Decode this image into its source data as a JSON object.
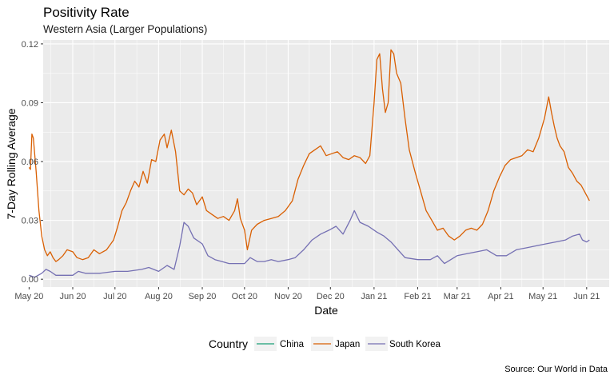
{
  "chart_data": {
    "type": "line",
    "title": "Positivity Rate",
    "subtitle": "Western Asia (Larger Populations)",
    "xlabel": "Date",
    "ylabel": "7-Day Rolling Average",
    "caption": "Source:  Our World in Data",
    "legend_title": "Country",
    "legend_position": "bottom",
    "grid": true,
    "ylim": [
      -0.004,
      0.122
    ],
    "xlim": [
      "2020-05-11",
      "2021-06-17"
    ],
    "y_ticks": [
      0.0,
      0.03,
      0.06,
      0.09,
      0.12
    ],
    "y_tick_labels": [
      "0.00",
      "0.03",
      "0.06",
      "0.09",
      "0.12"
    ],
    "x_ticks": [
      "2020-05-01",
      "2020-06-01",
      "2020-07-01",
      "2020-08-01",
      "2020-09-01",
      "2020-10-01",
      "2020-11-01",
      "2020-12-01",
      "2021-01-01",
      "2021-02-01",
      "2021-03-01",
      "2021-04-01",
      "2021-05-01",
      "2021-06-01"
    ],
    "x_tick_labels": [
      "May 20",
      "Jun 20",
      "Jul 20",
      "Aug 20",
      "Sep 20",
      "Oct 20",
      "Nov 20",
      "Dec 20",
      "Jan 21",
      "Feb 21",
      "Mar 21",
      "Apr 21",
      "May 21",
      "Jun 21"
    ],
    "series": [
      {
        "name": "China",
        "color": "#1b9e77",
        "x": [],
        "y": []
      },
      {
        "name": "Japan",
        "color": "#d95f02",
        "x": [
          "2020-05-01",
          "2020-05-02",
          "2020-05-03",
          "2020-05-04",
          "2020-05-06",
          "2020-05-08",
          "2020-05-10",
          "2020-05-12",
          "2020-05-14",
          "2020-05-16",
          "2020-05-18",
          "2020-05-20",
          "2020-05-22",
          "2020-05-25",
          "2020-05-28",
          "2020-06-01",
          "2020-06-04",
          "2020-06-08",
          "2020-06-12",
          "2020-06-16",
          "2020-06-20",
          "2020-06-25",
          "2020-06-30",
          "2020-07-03",
          "2020-07-06",
          "2020-07-09",
          "2020-07-12",
          "2020-07-15",
          "2020-07-18",
          "2020-07-21",
          "2020-07-24",
          "2020-07-27",
          "2020-07-30",
          "2020-08-02",
          "2020-08-05",
          "2020-08-07",
          "2020-08-10",
          "2020-08-13",
          "2020-08-16",
          "2020-08-19",
          "2020-08-22",
          "2020-08-25",
          "2020-08-28",
          "2020-09-01",
          "2020-09-04",
          "2020-09-08",
          "2020-09-12",
          "2020-09-16",
          "2020-09-20",
          "2020-09-24",
          "2020-09-26",
          "2020-09-28",
          "2020-10-01",
          "2020-10-03",
          "2020-10-06",
          "2020-10-10",
          "2020-10-15",
          "2020-10-20",
          "2020-10-25",
          "2020-10-30",
          "2020-11-04",
          "2020-11-08",
          "2020-11-12",
          "2020-11-16",
          "2020-11-20",
          "2020-11-24",
          "2020-11-28",
          "2020-12-02",
          "2020-12-06",
          "2020-12-10",
          "2020-12-14",
          "2020-12-18",
          "2020-12-22",
          "2020-12-26",
          "2020-12-29",
          "2021-01-01",
          "2021-01-03",
          "2021-01-05",
          "2021-01-07",
          "2021-01-09",
          "2021-01-11",
          "2021-01-13",
          "2021-01-15",
          "2021-01-17",
          "2021-01-20",
          "2021-01-23",
          "2021-01-26",
          "2021-01-30",
          "2021-02-03",
          "2021-02-07",
          "2021-02-11",
          "2021-02-15",
          "2021-02-19",
          "2021-02-23",
          "2021-02-27",
          "2021-03-03",
          "2021-03-07",
          "2021-03-11",
          "2021-03-15",
          "2021-03-19",
          "2021-03-23",
          "2021-03-27",
          "2021-03-31",
          "2021-04-04",
          "2021-04-08",
          "2021-04-12",
          "2021-04-16",
          "2021-04-20",
          "2021-04-24",
          "2021-04-28",
          "2021-05-02",
          "2021-05-05",
          "2021-05-07",
          "2021-05-09",
          "2021-05-11",
          "2021-05-13",
          "2021-05-16",
          "2021-05-19",
          "2021-05-22",
          "2021-05-25",
          "2021-05-28",
          "2021-05-31",
          "2021-06-03"
        ],
        "y": [
          0.057,
          0.056,
          0.074,
          0.072,
          0.055,
          0.035,
          0.022,
          0.015,
          0.012,
          0.014,
          0.011,
          0.009,
          0.01,
          0.012,
          0.015,
          0.014,
          0.011,
          0.01,
          0.011,
          0.015,
          0.013,
          0.015,
          0.02,
          0.027,
          0.035,
          0.039,
          0.045,
          0.05,
          0.047,
          0.055,
          0.049,
          0.061,
          0.06,
          0.071,
          0.074,
          0.067,
          0.076,
          0.065,
          0.045,
          0.043,
          0.046,
          0.044,
          0.038,
          0.042,
          0.035,
          0.033,
          0.031,
          0.032,
          0.03,
          0.035,
          0.041,
          0.031,
          0.025,
          0.015,
          0.025,
          0.028,
          0.03,
          0.031,
          0.032,
          0.035,
          0.04,
          0.051,
          0.058,
          0.064,
          0.066,
          0.068,
          0.063,
          0.064,
          0.065,
          0.062,
          0.061,
          0.063,
          0.062,
          0.059,
          0.063,
          0.09,
          0.112,
          0.115,
          0.097,
          0.085,
          0.09,
          0.117,
          0.115,
          0.105,
          0.1,
          0.082,
          0.066,
          0.055,
          0.045,
          0.035,
          0.03,
          0.025,
          0.026,
          0.022,
          0.02,
          0.022,
          0.025,
          0.026,
          0.025,
          0.028,
          0.035,
          0.045,
          0.052,
          0.058,
          0.061,
          0.062,
          0.063,
          0.066,
          0.065,
          0.072,
          0.082,
          0.093,
          0.085,
          0.078,
          0.072,
          0.068,
          0.065,
          0.057,
          0.054,
          0.05,
          0.048,
          0.044,
          0.04
        ]
      },
      {
        "name": "South Korea",
        "color": "#7570b3",
        "x": [
          "2020-05-01",
          "2020-05-05",
          "2020-05-10",
          "2020-05-13",
          "2020-05-16",
          "2020-05-20",
          "2020-05-25",
          "2020-06-01",
          "2020-06-05",
          "2020-06-10",
          "2020-06-20",
          "2020-07-01",
          "2020-07-10",
          "2020-07-20",
          "2020-07-25",
          "2020-08-01",
          "2020-08-07",
          "2020-08-12",
          "2020-08-16",
          "2020-08-19",
          "2020-08-22",
          "2020-08-26",
          "2020-09-01",
          "2020-09-05",
          "2020-09-10",
          "2020-09-15",
          "2020-09-20",
          "2020-09-25",
          "2020-10-01",
          "2020-10-05",
          "2020-10-10",
          "2020-10-15",
          "2020-10-20",
          "2020-10-25",
          "2020-11-01",
          "2020-11-06",
          "2020-11-12",
          "2020-11-18",
          "2020-11-24",
          "2020-11-30",
          "2020-12-05",
          "2020-12-10",
          "2020-12-15",
          "2020-12-18",
          "2020-12-22",
          "2020-12-28",
          "2021-01-03",
          "2021-01-08",
          "2021-01-13",
          "2021-01-18",
          "2021-01-23",
          "2021-02-01",
          "2021-02-10",
          "2021-02-15",
          "2021-02-20",
          "2021-03-01",
          "2021-03-08",
          "2021-03-15",
          "2021-03-22",
          "2021-03-29",
          "2021-04-05",
          "2021-04-12",
          "2021-04-19",
          "2021-04-26",
          "2021-05-03",
          "2021-05-10",
          "2021-05-17",
          "2021-05-22",
          "2021-05-27",
          "2021-05-29",
          "2021-06-01",
          "2021-06-03"
        ],
        "y": [
          0.002,
          0.001,
          0.003,
          0.005,
          0.004,
          0.002,
          0.002,
          0.002,
          0.004,
          0.003,
          0.003,
          0.004,
          0.004,
          0.005,
          0.006,
          0.004,
          0.007,
          0.005,
          0.017,
          0.029,
          0.027,
          0.021,
          0.018,
          0.012,
          0.01,
          0.009,
          0.008,
          0.008,
          0.008,
          0.011,
          0.009,
          0.009,
          0.01,
          0.009,
          0.01,
          0.011,
          0.015,
          0.02,
          0.023,
          0.025,
          0.027,
          0.023,
          0.03,
          0.035,
          0.029,
          0.027,
          0.024,
          0.022,
          0.019,
          0.015,
          0.011,
          0.01,
          0.01,
          0.012,
          0.008,
          0.012,
          0.013,
          0.014,
          0.015,
          0.012,
          0.012,
          0.015,
          0.016,
          0.017,
          0.018,
          0.019,
          0.02,
          0.022,
          0.023,
          0.02,
          0.019,
          0.02
        ]
      }
    ]
  }
}
